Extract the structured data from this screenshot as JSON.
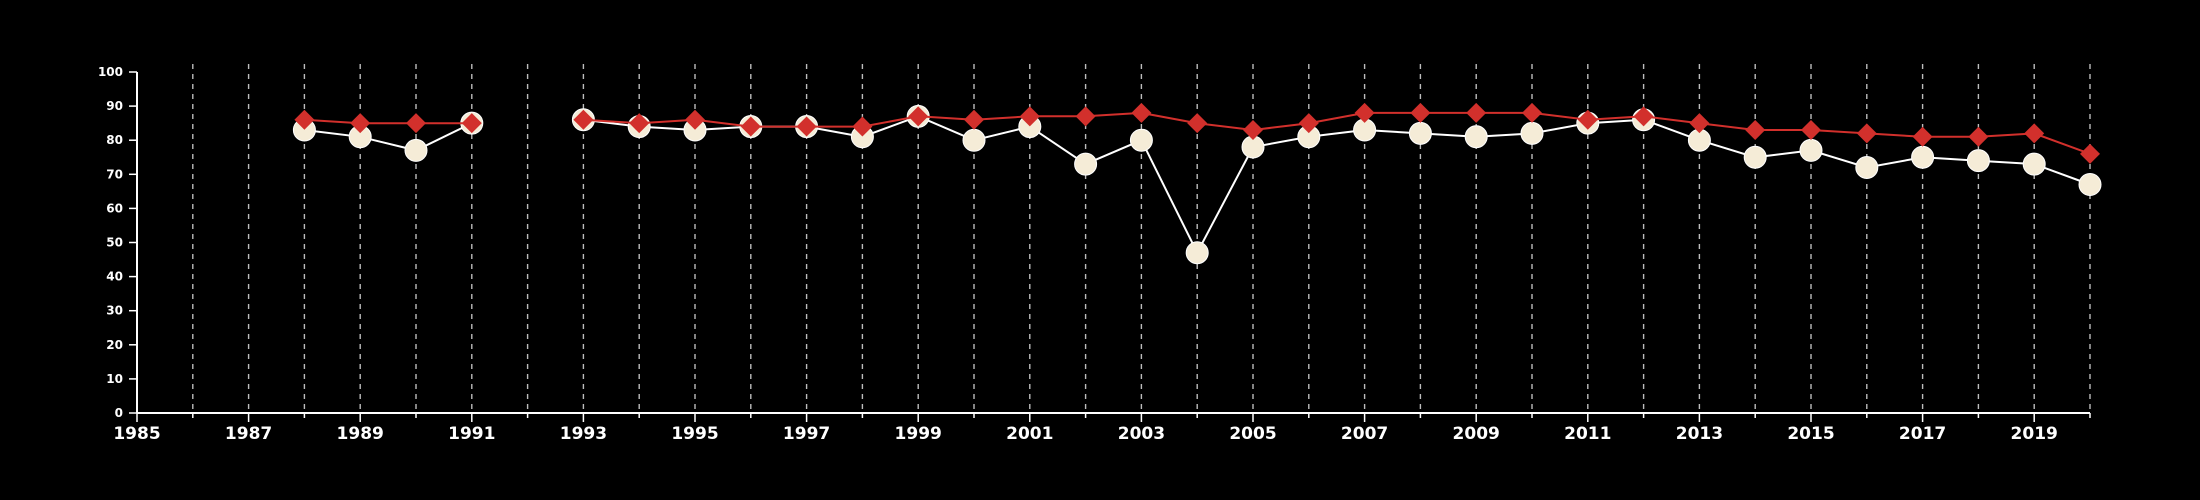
{
  "chart_data": {
    "type": "line",
    "title": "",
    "xlabel": "",
    "ylabel": "",
    "xlim": [
      1985,
      2020
    ],
    "ylim": [
      0,
      100
    ],
    "y_ticks": [
      0,
      10,
      20,
      30,
      40,
      50,
      60,
      70,
      80,
      90,
      100
    ],
    "x_tick_labels": [
      1985,
      1987,
      1989,
      1991,
      1993,
      1995,
      1997,
      1999,
      2001,
      2003,
      2005,
      2007,
      2009,
      2011,
      2013,
      2015,
      2017,
      2019
    ],
    "grid": "vertical dashed lines at every year",
    "legend": "none",
    "series": [
      {
        "marker": "circle",
        "color": "#f5ecd7",
        "line_color": "#ffffff",
        "points": [
          [
            1988,
            83
          ],
          [
            1989,
            81
          ],
          [
            1990,
            77
          ],
          [
            1991,
            85
          ],
          [
            1992,
            null
          ],
          [
            1993,
            86
          ],
          [
            1994,
            84
          ],
          [
            1995,
            83
          ],
          [
            1996,
            84
          ],
          [
            1997,
            84
          ],
          [
            1998,
            81
          ],
          [
            1999,
            87
          ],
          [
            2000,
            80
          ],
          [
            2001,
            84
          ],
          [
            2002,
            73
          ],
          [
            2003,
            80
          ],
          [
            2004,
            47
          ],
          [
            2005,
            78
          ],
          [
            2006,
            81
          ],
          [
            2007,
            83
          ],
          [
            2008,
            82
          ],
          [
            2009,
            81
          ],
          [
            2010,
            82
          ],
          [
            2011,
            85
          ],
          [
            2012,
            86
          ],
          [
            2013,
            80
          ],
          [
            2014,
            75
          ],
          [
            2015,
            77
          ],
          [
            2016,
            72
          ],
          [
            2017,
            75
          ],
          [
            2018,
            74
          ],
          [
            2019,
            73
          ],
          [
            2020,
            67
          ]
        ]
      },
      {
        "marker": "diamond",
        "color": "#d2302c",
        "line_color": "#d2302c",
        "points": [
          [
            1988,
            86
          ],
          [
            1989,
            85
          ],
          [
            1990,
            85
          ],
          [
            1991,
            85
          ],
          [
            1992,
            null
          ],
          [
            1993,
            86
          ],
          [
            1994,
            85
          ],
          [
            1995,
            86
          ],
          [
            1996,
            84
          ],
          [
            1997,
            84
          ],
          [
            1998,
            84
          ],
          [
            1999,
            87
          ],
          [
            2000,
            86
          ],
          [
            2001,
            87
          ],
          [
            2002,
            87
          ],
          [
            2003,
            88
          ],
          [
            2004,
            85
          ],
          [
            2005,
            83
          ],
          [
            2006,
            85
          ],
          [
            2007,
            88
          ],
          [
            2008,
            88
          ],
          [
            2009,
            88
          ],
          [
            2010,
            88
          ],
          [
            2011,
            86
          ],
          [
            2012,
            87
          ],
          [
            2013,
            85
          ],
          [
            2014,
            83
          ],
          [
            2015,
            83
          ],
          [
            2016,
            82
          ],
          [
            2017,
            81
          ],
          [
            2018,
            81
          ],
          [
            2019,
            82
          ],
          [
            2020,
            76
          ]
        ]
      }
    ]
  }
}
